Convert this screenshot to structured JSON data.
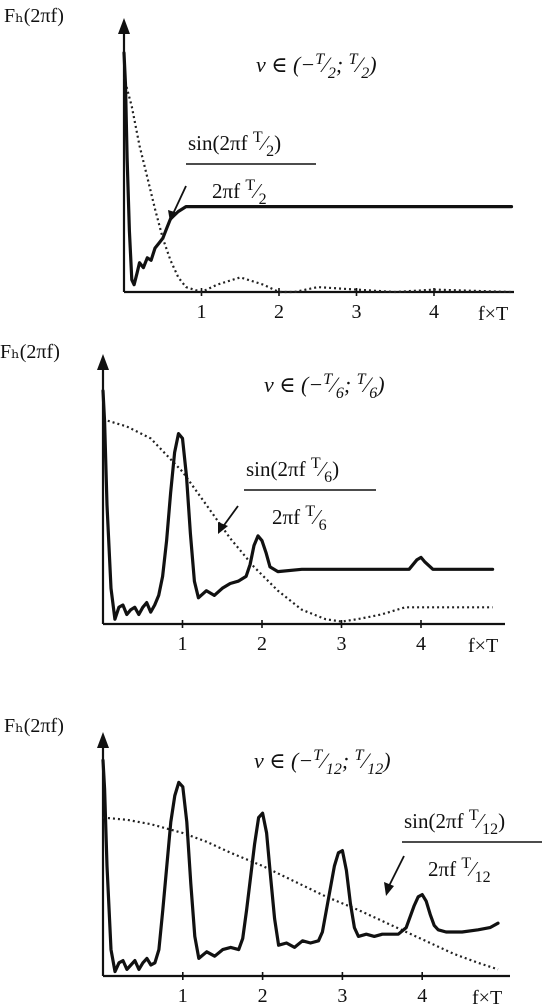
{
  "chart_data": [
    {
      "type": "line",
      "ylabel": "Fₕ(2πf)",
      "xlabel": "f×T",
      "ticks": [
        "1",
        "2",
        "3",
        "4"
      ],
      "xlim": [
        0,
        5
      ],
      "ylim": [
        0,
        1
      ],
      "annotation": {
        "prefix": "ν ∈ (−",
        "num": "T",
        "den": "2",
        "sep": "; ",
        "close": ")"
      },
      "fraction": {
        "num_pre": "sin(2πf ",
        "num_post": ")",
        "den_pre": "2πf ",
        "T": "T",
        "d": "2"
      },
      "series": [
        {
          "style": "solid",
          "x": [
            0,
            0.02,
            0.04,
            0.07,
            0.1,
            0.13,
            0.17,
            0.2,
            0.25,
            0.3,
            0.35,
            0.4,
            0.45,
            0.5,
            0.55,
            0.6,
            0.7,
            0.8,
            1.0,
            1.5,
            2.0,
            3.0,
            4.0,
            5.0
          ],
          "y": [
            0.98,
            0.85,
            0.55,
            0.25,
            0.05,
            0.03,
            0.08,
            0.12,
            0.1,
            0.14,
            0.13,
            0.18,
            0.2,
            0.22,
            0.26,
            0.3,
            0.33,
            0.35,
            0.35,
            0.35,
            0.35,
            0.35,
            0.35,
            0.35
          ]
        },
        {
          "style": "dotted",
          "x": [
            0,
            0.1,
            0.2,
            0.3,
            0.4,
            0.5,
            0.6,
            0.7,
            0.8,
            1.0,
            1.2,
            1.4,
            1.5,
            1.6,
            1.8,
            2.0,
            2.2,
            2.5,
            3.0,
            3.5,
            4.0,
            5.0
          ],
          "y": [
            0.88,
            0.76,
            0.6,
            0.47,
            0.34,
            0.22,
            0.13,
            0.06,
            0.02,
            0.0,
            0.03,
            0.05,
            0.06,
            0.05,
            0.03,
            0.0,
            0.0,
            0.02,
            0.01,
            0.0,
            0.01,
            0.0
          ]
        }
      ]
    },
    {
      "type": "line",
      "ylabel": "Fₕ(2πf)",
      "xlabel": "f×T",
      "ticks": [
        "1",
        "2",
        "3",
        "4"
      ],
      "xlim": [
        0,
        5
      ],
      "ylim": [
        0,
        1
      ],
      "annotation": {
        "prefix": "ν ∈ (−",
        "num": "T",
        "den": "6",
        "sep": "; ",
        "close": ")"
      },
      "fraction": {
        "num_pre": "sin(2πf ",
        "num_post": ")",
        "den_pre": "2πf ",
        "T": "T",
        "d": "6"
      },
      "series": [
        {
          "style": "solid",
          "x": [
            0,
            0.02,
            0.05,
            0.1,
            0.15,
            0.2,
            0.25,
            0.3,
            0.35,
            0.4,
            0.45,
            0.5,
            0.55,
            0.6,
            0.65,
            0.7,
            0.75,
            0.8,
            0.85,
            0.9,
            0.95,
            1.0,
            1.05,
            1.1,
            1.15,
            1.2,
            1.3,
            1.4,
            1.5,
            1.6,
            1.7,
            1.8,
            1.85,
            1.9,
            1.95,
            2.0,
            2.05,
            2.1,
            2.2,
            2.5,
            3.0,
            3.5,
            3.85,
            3.95,
            4.0,
            4.05,
            4.15,
            4.5,
            4.9
          ],
          "y": [
            0.98,
            0.85,
            0.5,
            0.15,
            0.02,
            0.07,
            0.08,
            0.04,
            0.06,
            0.07,
            0.04,
            0.07,
            0.09,
            0.05,
            0.08,
            0.12,
            0.2,
            0.35,
            0.55,
            0.72,
            0.8,
            0.78,
            0.62,
            0.38,
            0.18,
            0.11,
            0.14,
            0.12,
            0.15,
            0.17,
            0.18,
            0.2,
            0.25,
            0.33,
            0.37,
            0.35,
            0.3,
            0.24,
            0.22,
            0.23,
            0.23,
            0.23,
            0.23,
            0.27,
            0.28,
            0.26,
            0.23,
            0.23,
            0.23
          ]
        },
        {
          "style": "dotted",
          "x": [
            0,
            0.3,
            0.6,
            1.0,
            1.3,
            1.6,
            1.9,
            2.2,
            2.5,
            2.8,
            3.0,
            3.2,
            3.5,
            3.8,
            4.0,
            4.3,
            4.6,
            4.9
          ],
          "y": [
            0.86,
            0.83,
            0.78,
            0.64,
            0.5,
            0.36,
            0.24,
            0.14,
            0.06,
            0.02,
            0.01,
            0.02,
            0.04,
            0.07,
            0.07,
            0.07,
            0.07,
            0.07
          ]
        }
      ]
    },
    {
      "type": "line",
      "ylabel": "Fₕ(2πf)",
      "xlabel": "f×T",
      "ticks": [
        "1",
        "2",
        "3",
        "4"
      ],
      "xlim": [
        0,
        5
      ],
      "ylim": [
        0,
        1
      ],
      "annotation": {
        "prefix": "ν ∈ (−",
        "num": "T",
        "den": "12",
        "sep": "; ",
        "close": ")"
      },
      "fraction": {
        "num_pre": "sin(2πf ",
        "num_post": ")",
        "den_pre": "2πf ",
        "T": "T",
        "d": "12"
      },
      "series": [
        {
          "style": "solid",
          "x": [
            0,
            0.02,
            0.05,
            0.1,
            0.15,
            0.2,
            0.25,
            0.3,
            0.35,
            0.4,
            0.45,
            0.5,
            0.55,
            0.6,
            0.65,
            0.7,
            0.75,
            0.8,
            0.85,
            0.9,
            0.95,
            1.0,
            1.05,
            1.1,
            1.15,
            1.2,
            1.3,
            1.4,
            1.5,
            1.6,
            1.7,
            1.75,
            1.8,
            1.85,
            1.9,
            1.95,
            2.0,
            2.05,
            2.1,
            2.15,
            2.2,
            2.3,
            2.4,
            2.5,
            2.6,
            2.7,
            2.75,
            2.8,
            2.85,
            2.9,
            2.95,
            3.0,
            3.05,
            3.1,
            3.15,
            3.2,
            3.3,
            3.4,
            3.5,
            3.6,
            3.7,
            3.8,
            3.85,
            3.9,
            3.95,
            4.0,
            4.05,
            4.1,
            4.15,
            4.2,
            4.3,
            4.5,
            4.7,
            4.85,
            4.95
          ],
          "y": [
            0.98,
            0.85,
            0.5,
            0.12,
            0.02,
            0.06,
            0.07,
            0.03,
            0.05,
            0.07,
            0.03,
            0.06,
            0.08,
            0.05,
            0.06,
            0.12,
            0.3,
            0.5,
            0.7,
            0.82,
            0.88,
            0.86,
            0.7,
            0.42,
            0.18,
            0.08,
            0.11,
            0.09,
            0.12,
            0.13,
            0.12,
            0.17,
            0.3,
            0.45,
            0.6,
            0.72,
            0.74,
            0.65,
            0.45,
            0.26,
            0.14,
            0.15,
            0.13,
            0.16,
            0.15,
            0.16,
            0.2,
            0.3,
            0.4,
            0.5,
            0.56,
            0.57,
            0.48,
            0.33,
            0.22,
            0.18,
            0.19,
            0.18,
            0.19,
            0.19,
            0.19,
            0.22,
            0.27,
            0.32,
            0.36,
            0.37,
            0.34,
            0.28,
            0.23,
            0.21,
            0.2,
            0.2,
            0.21,
            0.22,
            0.24
          ]
        },
        {
          "style": "dotted",
          "x": [
            0,
            0.3,
            0.6,
            1.0,
            1.3,
            1.6,
            2.0,
            2.4,
            2.8,
            3.2,
            3.5,
            3.8,
            4.1,
            4.4,
            4.7,
            4.95
          ],
          "y": [
            0.72,
            0.71,
            0.69,
            0.65,
            0.61,
            0.56,
            0.5,
            0.43,
            0.36,
            0.3,
            0.25,
            0.2,
            0.15,
            0.1,
            0.06,
            0.03
          ]
        }
      ]
    }
  ]
}
